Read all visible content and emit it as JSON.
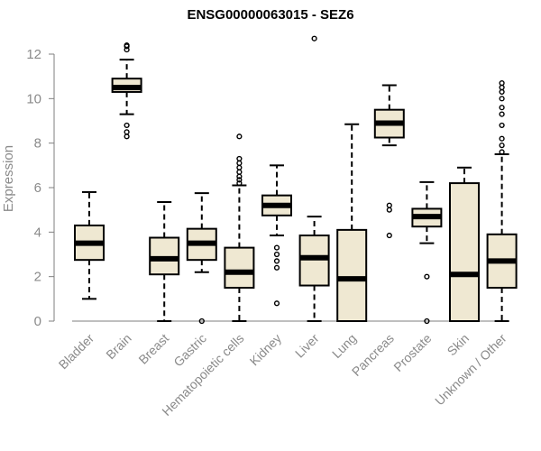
{
  "chart_data": {
    "type": "boxplot",
    "title": "ENSG00000063015 - SEZ6",
    "xlabel": "",
    "ylabel": "Expression",
    "ylim": [
      0,
      12
    ],
    "yticks": [
      "0",
      "2",
      "4",
      "6",
      "8",
      "10",
      "12"
    ],
    "grid": false,
    "box_fill": "#efe8d2",
    "box_stroke": "#000000",
    "median_color": "#000000",
    "categories": [
      "Bladder",
      "Brain",
      "Breast",
      "Gastric",
      "Hematopoietic cells",
      "Kidney",
      "Liver",
      "Lung",
      "Pancreas",
      "Prostate",
      "Skin",
      "Unknown / Other"
    ],
    "boxes": [
      {
        "q1": 2.75,
        "median": 3.5,
        "q3": 4.3,
        "whisker_low": 1.0,
        "whisker_high": 5.8,
        "outliers": []
      },
      {
        "q1": 10.3,
        "median": 10.5,
        "q3": 10.9,
        "whisker_low": 9.3,
        "whisker_high": 11.75,
        "outliers": [
          8.3,
          8.5,
          8.8,
          12.2,
          12.35,
          12.4
        ]
      },
      {
        "q1": 2.1,
        "median": 2.8,
        "q3": 3.75,
        "whisker_low": 0.0,
        "whisker_high": 5.35,
        "outliers": []
      },
      {
        "q1": 2.75,
        "median": 3.5,
        "q3": 4.15,
        "whisker_low": 2.2,
        "whisker_high": 5.75,
        "outliers": [
          0.0
        ]
      },
      {
        "q1": 1.5,
        "median": 2.2,
        "q3": 3.3,
        "whisker_low": 0.0,
        "whisker_high": 6.1,
        "outliers": [
          6.2,
          6.35,
          6.5,
          6.7,
          6.9,
          7.1,
          7.3,
          8.3
        ]
      },
      {
        "q1": 4.75,
        "median": 5.2,
        "q3": 5.65,
        "whisker_low": 3.85,
        "whisker_high": 7.0,
        "outliers": [
          0.8,
          2.4,
          2.7,
          3.0,
          3.3
        ]
      },
      {
        "q1": 1.6,
        "median": 2.85,
        "q3": 3.85,
        "whisker_low": 0.0,
        "whisker_high": 4.7,
        "outliers": [
          12.7
        ]
      },
      {
        "q1": 0.0,
        "median": 1.9,
        "q3": 4.1,
        "whisker_low": 0.0,
        "whisker_high": 8.85,
        "outliers": []
      },
      {
        "q1": 8.25,
        "median": 8.9,
        "q3": 9.5,
        "whisker_low": 7.9,
        "whisker_high": 10.6,
        "outliers": [
          3.85,
          5.0,
          5.2
        ]
      },
      {
        "q1": 4.25,
        "median": 4.7,
        "q3": 5.05,
        "whisker_low": 3.5,
        "whisker_high": 6.25,
        "outliers": [
          0.0,
          2.0
        ]
      },
      {
        "q1": 0.0,
        "median": 2.1,
        "q3": 6.2,
        "whisker_low": 0.0,
        "whisker_high": 6.9,
        "outliers": []
      },
      {
        "q1": 1.5,
        "median": 2.7,
        "q3": 3.9,
        "whisker_low": 0.0,
        "whisker_high": 7.5,
        "outliers": [
          7.6,
          7.9,
          8.2,
          8.8,
          9.3,
          9.6,
          10.0,
          10.3,
          10.5,
          10.7
        ]
      }
    ]
  }
}
